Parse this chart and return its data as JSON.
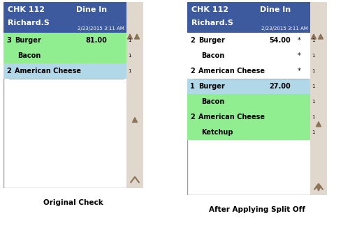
{
  "title_bg": "#3d5a9e",
  "header_bg": "#3d5a9e",
  "chk_title": "CHK 112",
  "dine_in": "Dine In",
  "customer": "Richard.S",
  "datetime": "2/23/2015 3:11 AM",
  "scrollbar_bg": "#e0d8cc",
  "content_bg": "#ffffff",
  "green_bg": "#90ee90",
  "light_blue_bg": "#b0d8e8",
  "border_color": "#999999",
  "left_caption": "Original Check",
  "right_caption": "After Applying Split Off",
  "arrow_color": "#8b7355",
  "left_items": [
    {
      "qty": "3",
      "name": "Burger",
      "price": "81.00",
      "star": "",
      "indent": false,
      "bg": "green"
    },
    {
      "qty": "",
      "name": "Bacon",
      "price": "",
      "star": "",
      "indent": true,
      "bg": "green"
    },
    {
      "qty": "2",
      "name": "American Cheese",
      "price": "",
      "star": "",
      "indent": false,
      "bg": "light_blue"
    }
  ],
  "right_items": [
    {
      "qty": "2",
      "name": "Burger",
      "price": "54.00",
      "star": "*",
      "indent": false,
      "bg": "white"
    },
    {
      "qty": "",
      "name": "Bacon",
      "price": "",
      "star": "*",
      "indent": true,
      "bg": "white"
    },
    {
      "qty": "2",
      "name": "American Cheese",
      "price": "",
      "star": "*",
      "indent": false,
      "bg": "white"
    },
    {
      "qty": "1",
      "name": "Burger",
      "price": "27.00",
      "star": "",
      "indent": false,
      "bg": "light_blue"
    },
    {
      "qty": "",
      "name": "Bacon",
      "price": "",
      "star": "",
      "indent": true,
      "bg": "green"
    },
    {
      "qty": "2",
      "name": "American Cheese",
      "price": "",
      "star": "",
      "indent": false,
      "bg": "green"
    },
    {
      "qty": "",
      "name": "Ketchup",
      "price": "",
      "star": "",
      "indent": true,
      "bg": "green"
    }
  ],
  "fig_width": 5.21,
  "fig_height": 3.46
}
